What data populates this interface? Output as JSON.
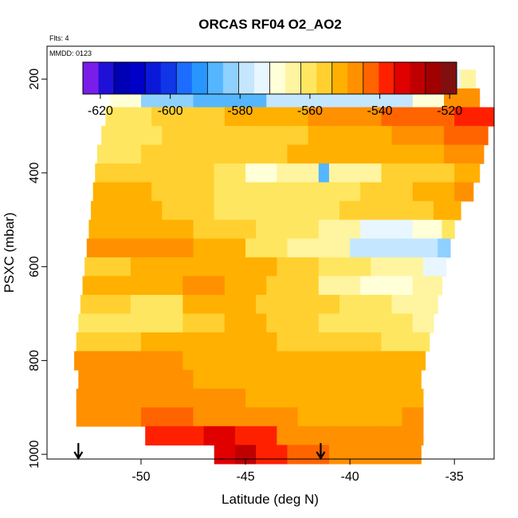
{
  "chart_data": {
    "type": "heatmap",
    "title": "ORCAS RF04 O2_AO2",
    "flights_label": "Flts: 4",
    "date_label": "MMDD: 0123",
    "xlabel": "Latitude (deg N)",
    "ylabel": "PSXC (mbar)",
    "xlim": [
      -54.5,
      -33.1
    ],
    "ylim": [
      1010,
      130
    ],
    "y_reversed": true,
    "x_ticks": [
      -50,
      -45,
      -40,
      -35
    ],
    "y_ticks": [
      200,
      400,
      600,
      800,
      1000
    ],
    "colorbar": {
      "range": [
        -625,
        -518
      ],
      "ticks": [
        -620,
        -600,
        -580,
        -560,
        -540,
        -520
      ],
      "colors": [
        "#7a1de8",
        "#1f10d8",
        "#0000b4",
        "#0000c8",
        "#0a18d8",
        "#1036e8",
        "#1c6cff",
        "#2896ff",
        "#54b6ff",
        "#8ed0ff",
        "#c4e6ff",
        "#e8f6ff",
        "#ffffd8",
        "#fff4a0",
        "#ffe660",
        "#ffd030",
        "#ffb000",
        "#ff9000",
        "#ff6400",
        "#ff2000",
        "#e00000",
        "#c00000",
        "#a00000",
        "#801010"
      ]
    },
    "rows": [
      {
        "p": 200,
        "x0": -51.3,
        "x1": -34.0,
        "segments": [
          [
            -51.3,
            -567
          ],
          [
            -50.4,
            -589
          ],
          [
            -48.0,
            -591
          ],
          [
            -38.8,
            -582
          ],
          [
            -36.5,
            -574
          ],
          [
            -34.7,
            -566
          ]
        ]
      },
      {
        "p": 240,
        "x0": -51.5,
        "x1": -33.8,
        "segments": [
          [
            -51.5,
            -571
          ],
          [
            -50.0,
            -584
          ],
          [
            -47.5,
            -588
          ],
          [
            -44.0,
            -580
          ],
          [
            -40.0,
            -576
          ],
          [
            -37.0,
            -568
          ],
          [
            -35.5,
            -548
          ]
        ]
      },
      {
        "p": 280,
        "x0": -51.7,
        "x1": -33.1,
        "segments": [
          [
            -51.7,
            -561
          ],
          [
            -49.5,
            -557
          ],
          [
            -46.0,
            -553
          ],
          [
            -42.0,
            -549
          ],
          [
            -38.5,
            -544
          ],
          [
            -35.0,
            -539
          ]
        ]
      },
      {
        "p": 320,
        "x0": -51.9,
        "x1": -33.4,
        "segments": [
          [
            -51.9,
            -560
          ],
          [
            -49.0,
            -558
          ],
          [
            -45.5,
            -554
          ],
          [
            -42.0,
            -551
          ],
          [
            -38.0,
            -548
          ],
          [
            -35.5,
            -543
          ]
        ]
      },
      {
        "p": 360,
        "x0": -52.1,
        "x1": -33.6,
        "segments": [
          [
            -52.1,
            -559
          ],
          [
            -50.0,
            -557
          ],
          [
            -46.0,
            -555
          ],
          [
            -43.0,
            -553
          ],
          [
            -39.0,
            -550
          ],
          [
            -35.5,
            -546
          ]
        ]
      },
      {
        "p": 400,
        "x0": -52.2,
        "x1": -33.8,
        "segments": [
          [
            -52.2,
            -556
          ],
          [
            -49.5,
            -554
          ],
          [
            -46.5,
            -560
          ],
          [
            -45.0,
            -570
          ],
          [
            -43.5,
            -566
          ],
          [
            -41.5,
            -585
          ],
          [
            -41.0,
            -563
          ],
          [
            -38.5,
            -557
          ],
          [
            -35.0,
            -552
          ]
        ]
      },
      {
        "p": 440,
        "x0": -52.3,
        "x1": -34.1,
        "segments": [
          [
            -52.3,
            -553
          ],
          [
            -49.5,
            -555
          ],
          [
            -46.5,
            -560
          ],
          [
            -44.0,
            -562
          ],
          [
            -41.5,
            -560
          ],
          [
            -39.5,
            -557
          ],
          [
            -37.0,
            -553
          ],
          [
            -35.0,
            -548
          ]
        ]
      },
      {
        "p": 480,
        "x0": -52.4,
        "x1": -34.7,
        "segments": [
          [
            -52.4,
            -553
          ],
          [
            -49.0,
            -557
          ],
          [
            -46.5,
            -560
          ],
          [
            -43.5,
            -561
          ],
          [
            -40.5,
            -558
          ],
          [
            -38.0,
            -556
          ],
          [
            -36.0,
            -552
          ]
        ]
      },
      {
        "p": 520,
        "x0": -52.5,
        "x1": -35.0,
        "segments": [
          [
            -52.5,
            -550
          ],
          [
            -50.5,
            -553
          ],
          [
            -47.5,
            -557
          ],
          [
            -44.5,
            -561
          ],
          [
            -41.5,
            -567
          ],
          [
            -39.5,
            -573
          ],
          [
            -37.0,
            -570
          ],
          [
            -35.6,
            -560
          ]
        ]
      },
      {
        "p": 560,
        "x0": -52.6,
        "x1": -35.2,
        "segments": [
          [
            -52.6,
            -547
          ],
          [
            -50.5,
            -549
          ],
          [
            -47.5,
            -553
          ],
          [
            -45.0,
            -561
          ],
          [
            -43.0,
            -567
          ],
          [
            -40.0,
            -576
          ],
          [
            -37.5,
            -580
          ],
          [
            -35.8,
            -584
          ]
        ]
      },
      {
        "p": 600,
        "x0": -52.7,
        "x1": -35.4,
        "segments": [
          [
            -52.7,
            -557
          ],
          [
            -50.5,
            -553
          ],
          [
            -47.5,
            -550
          ],
          [
            -45.5,
            -552
          ],
          [
            -43.5,
            -555
          ],
          [
            -41.5,
            -562
          ],
          [
            -39.0,
            -567
          ],
          [
            -36.5,
            -573
          ]
        ]
      },
      {
        "p": 640,
        "x0": -52.8,
        "x1": -35.6,
        "segments": [
          [
            -52.8,
            -553
          ],
          [
            -50.5,
            -552
          ],
          [
            -48.0,
            -549
          ],
          [
            -46.0,
            -550
          ],
          [
            -44.0,
            -555
          ],
          [
            -41.5,
            -565
          ],
          [
            -39.5,
            -569
          ],
          [
            -37.0,
            -566
          ]
        ]
      },
      {
        "p": 680,
        "x0": -52.9,
        "x1": -35.8,
        "segments": [
          [
            -52.9,
            -557
          ],
          [
            -50.5,
            -560
          ],
          [
            -48.0,
            -553
          ],
          [
            -46.0,
            -551
          ],
          [
            -44.5,
            -555
          ],
          [
            -42.5,
            -558
          ],
          [
            -40.5,
            -562
          ],
          [
            -38.0,
            -566
          ]
        ]
      },
      {
        "p": 720,
        "x0": -53.0,
        "x1": -36.0,
        "segments": [
          [
            -53.0,
            -560
          ],
          [
            -50.5,
            -562
          ],
          [
            -48.0,
            -557
          ],
          [
            -46.0,
            -553
          ],
          [
            -44.0,
            -556
          ],
          [
            -41.5,
            -559
          ],
          [
            -39.0,
            -561
          ],
          [
            -37.0,
            -563
          ]
        ]
      },
      {
        "p": 760,
        "x0": -53.1,
        "x1": -36.2,
        "segments": [
          [
            -53.1,
            -555
          ],
          [
            -50.0,
            -553
          ],
          [
            -47.5,
            -552
          ],
          [
            -45.5,
            -553
          ],
          [
            -43.5,
            -556
          ],
          [
            -41.0,
            -558
          ],
          [
            -38.5,
            -559
          ]
        ]
      },
      {
        "p": 800,
        "x0": -53.2,
        "x1": -36.4,
        "segments": [
          [
            -53.2,
            -546
          ],
          [
            -50.5,
            -548
          ],
          [
            -48.0,
            -550
          ],
          [
            -45.5,
            -552
          ],
          [
            -43.0,
            -553
          ],
          [
            -40.0,
            -553
          ],
          [
            -37.5,
            -552
          ]
        ]
      },
      {
        "p": 840,
        "x0": -53.0,
        "x1": -36.6,
        "segments": [
          [
            -53.0,
            -548
          ],
          [
            -50.0,
            -549
          ],
          [
            -47.5,
            -551
          ],
          [
            -45.0,
            -552
          ],
          [
            -42.5,
            -553
          ],
          [
            -40.0,
            -553
          ],
          [
            -37.5,
            -552
          ]
        ]
      },
      {
        "p": 880,
        "x0": -53.1,
        "x1": -36.5,
        "segments": [
          [
            -53.1,
            -546
          ],
          [
            -50.0,
            -548
          ],
          [
            -47.5,
            -549
          ],
          [
            -45.0,
            -551
          ],
          [
            -42.5,
            -552
          ],
          [
            -40.0,
            -551
          ],
          [
            -37.5,
            -550
          ]
        ]
      },
      {
        "p": 920,
        "x0": -53.1,
        "x1": -36.5,
        "segments": [
          [
            -53.1,
            -546
          ],
          [
            -50.0,
            -543
          ],
          [
            -47.5,
            -545
          ],
          [
            -45.0,
            -548
          ],
          [
            -42.5,
            -550
          ],
          [
            -40.0,
            -550
          ],
          [
            -37.5,
            -549
          ]
        ]
      },
      {
        "p": 960,
        "x0": -49.8,
        "x1": -36.5,
        "segments": [
          [
            -49.8,
            -538
          ],
          [
            -48.5,
            -536
          ],
          [
            -47.0,
            -532
          ],
          [
            -45.5,
            -540
          ],
          [
            -43.5,
            -545
          ],
          [
            -41.0,
            -547
          ],
          [
            -38.5,
            -547
          ]
        ]
      },
      {
        "p": 1000,
        "x0": -46.5,
        "x1": -36.6,
        "segments": [
          [
            -46.5,
            -534
          ],
          [
            -45.5,
            -528
          ],
          [
            -44.5,
            -536
          ],
          [
            -43.0,
            -543
          ],
          [
            -41.0,
            -546
          ],
          [
            -38.5,
            -546
          ]
        ]
      }
    ],
    "row_height_mbar": 40,
    "arrows_x": [
      -53.0,
      -41.4
    ],
    "grid": false
  }
}
